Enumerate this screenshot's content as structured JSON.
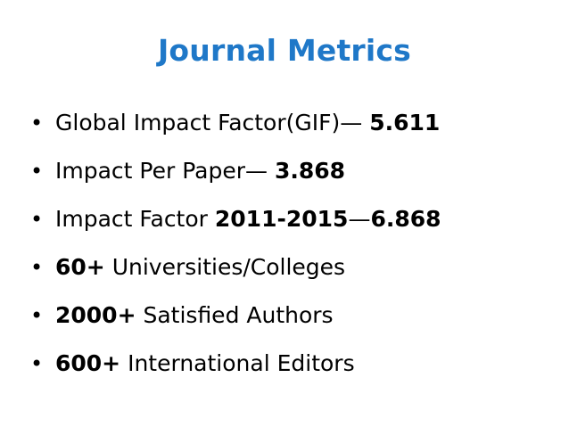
{
  "title": "Journal Metrics",
  "colors": {
    "title": "#1F78C8",
    "text": "#000000",
    "background": "#FFFFFF"
  },
  "bullet_glyph": "•",
  "bullets": [
    {
      "pre": "Global Impact Factor(GIF)— ",
      "value": "5.611"
    },
    {
      "pre": "Impact Per Paper— ",
      "value": "3.868"
    },
    {
      "pre": "Impact Factor ",
      "years": "2011-2015",
      "sep": "—",
      "value": "6.868"
    },
    {
      "lead": "60+",
      "text": " Universities/Colleges"
    },
    {
      "lead": "2000+",
      "text": " Satisfied Authors"
    },
    {
      "lead": "600+",
      "text": " International Editors"
    }
  ]
}
